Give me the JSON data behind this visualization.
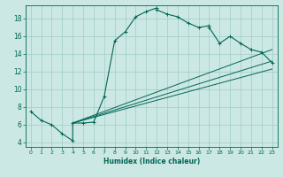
{
  "xlabel": "Humidex (Indice chaleur)",
  "bg_color": "#cce8e4",
  "grid_color": "#9fccc6",
  "line_color": "#006655",
  "xlim": [
    -0.5,
    23.5
  ],
  "ylim": [
    3.5,
    19.5
  ],
  "xticks": [
    0,
    1,
    2,
    3,
    4,
    5,
    6,
    7,
    8,
    9,
    10,
    11,
    12,
    13,
    14,
    15,
    16,
    17,
    18,
    19,
    20,
    21,
    22,
    23
  ],
  "yticks": [
    4,
    6,
    8,
    10,
    12,
    14,
    16,
    18
  ],
  "curve1_x": [
    0,
    1,
    2,
    3,
    4,
    4,
    5,
    6,
    7,
    8,
    9,
    10,
    11,
    12,
    12,
    13,
    14,
    15,
    16,
    17,
    17,
    18,
    19,
    20,
    21,
    22,
    23
  ],
  "curve1_y": [
    7.5,
    6.5,
    6.0,
    5.0,
    4.2,
    6.2,
    6.2,
    6.3,
    9.2,
    15.5,
    16.5,
    18.2,
    18.8,
    19.2,
    19.0,
    18.5,
    18.2,
    17.5,
    17.0,
    17.2,
    17.0,
    15.2,
    16.0,
    15.2,
    14.5,
    14.2,
    13.0
  ],
  "curve2_x": [
    4,
    23
  ],
  "curve2_y": [
    6.2,
    12.3
  ],
  "curve3_x": [
    4,
    23
  ],
  "curve3_y": [
    6.2,
    13.2
  ],
  "curve4_x": [
    4,
    23
  ],
  "curve4_y": [
    6.2,
    14.5
  ]
}
